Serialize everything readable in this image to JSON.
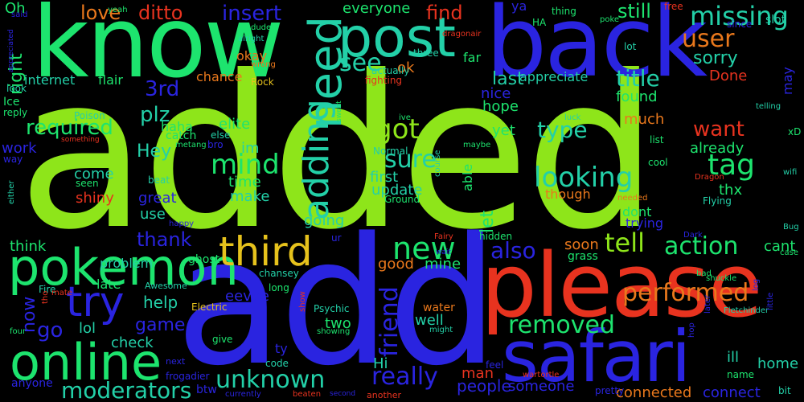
{
  "palette": {
    "lime": "#8ee51a",
    "green": "#1de46e",
    "blue": "#2a24e0",
    "red": "#e8331f",
    "teal": "#23d0a8",
    "yellow": "#e6c21c",
    "orange": "#e9781c"
  },
  "words": [
    {
      "text": "added",
      "color": "#8ee51a"
    },
    {
      "text": "add",
      "color": "#2a24e0"
    },
    {
      "text": "know",
      "color": "#1de46e"
    },
    {
      "text": "back",
      "color": "#2a24e0"
    },
    {
      "text": "please",
      "color": "#e8331f"
    },
    {
      "text": "safari",
      "color": "#2a24e0"
    },
    {
      "text": "pokemon",
      "color": "#1de46e"
    },
    {
      "text": "online",
      "color": "#1de46e"
    },
    {
      "text": "post",
      "color": "#23d0a8"
    },
    {
      "text": "need",
      "color": "#23d0a8"
    },
    {
      "text": "adding",
      "color": "#23d0a8"
    },
    {
      "text": "third",
      "color": "#e6c21c"
    },
    {
      "text": "try",
      "color": "#2a24e0"
    },
    {
      "text": "missing",
      "color": "#23d0a8"
    },
    {
      "text": "user",
      "color": "#e9781c"
    },
    {
      "text": "tag",
      "color": "#1de46e"
    },
    {
      "text": "looking",
      "color": "#23d0a8"
    },
    {
      "text": "action",
      "color": "#1de46e"
    },
    {
      "text": "removed",
      "color": "#1de46e"
    },
    {
      "text": "performed",
      "color": "#e9781c"
    },
    {
      "text": "unknown",
      "color": "#23d0a8"
    },
    {
      "text": "moderators",
      "color": "#23d0a8"
    },
    {
      "text": "really",
      "color": "#2a24e0"
    },
    {
      "text": "new",
      "color": "#1de46e"
    },
    {
      "text": "friend",
      "color": "#2a24e0"
    },
    {
      "text": "tell",
      "color": "#8ee51a"
    },
    {
      "text": "also",
      "color": "#2a24e0"
    },
    {
      "text": "see",
      "color": "#23d0a8"
    },
    {
      "text": "sure",
      "color": "#23d0a8"
    },
    {
      "text": "got",
      "color": "#8ee51a"
    },
    {
      "text": "mind",
      "color": "#1de46e"
    },
    {
      "text": "love",
      "color": "#e9781c"
    },
    {
      "text": "ditto",
      "color": "#e8331f"
    },
    {
      "text": "insert",
      "color": "#2a24e0"
    },
    {
      "text": "find",
      "color": "#e8331f"
    },
    {
      "text": "still",
      "color": "#1de46e"
    },
    {
      "text": "everyone",
      "color": "#1de46e"
    },
    {
      "text": "sorry",
      "color": "#23d0a8"
    },
    {
      "text": "title",
      "color": "#23d0a8"
    },
    {
      "text": "last",
      "color": "#23d0a8"
    },
    {
      "text": "type",
      "color": "#23d0a8"
    },
    {
      "text": "want",
      "color": "#e8331f"
    },
    {
      "text": "already",
      "color": "#1de46e"
    },
    {
      "text": "found",
      "color": "#1de46e"
    },
    {
      "text": "hope",
      "color": "#1de46e"
    },
    {
      "text": "much",
      "color": "#e9781c"
    },
    {
      "text": "required",
      "color": "#1de46e"
    },
    {
      "text": "plz",
      "color": "#23d0a8"
    },
    {
      "text": "Hey",
      "color": "#23d0a8"
    },
    {
      "text": "3rd",
      "color": "#2a24e0"
    },
    {
      "text": "right",
      "color": "#1de46e"
    },
    {
      "text": "internet",
      "color": "#23d0a8"
    },
    {
      "text": "flair",
      "color": "#1de46e"
    },
    {
      "text": "chance",
      "color": "#e9781c"
    },
    {
      "text": "haha",
      "color": "#1de46e"
    },
    {
      "text": "elite",
      "color": "#1de46e"
    },
    {
      "text": "im",
      "color": "#23d0a8"
    },
    {
      "text": "time",
      "color": "#1de46e"
    },
    {
      "text": "make",
      "color": "#23d0a8"
    },
    {
      "text": "update",
      "color": "#23d0a8"
    },
    {
      "text": "first",
      "color": "#23d0a8"
    },
    {
      "text": "let",
      "color": "#1de46e"
    },
    {
      "text": "going",
      "color": "#23d0a8"
    },
    {
      "text": "work",
      "color": "#2a24e0"
    },
    {
      "text": "come",
      "color": "#23d0a8"
    },
    {
      "text": "great",
      "color": "#2a24e0"
    },
    {
      "text": "shiny",
      "color": "#e8331f"
    },
    {
      "text": "use",
      "color": "#23d0a8"
    },
    {
      "text": "thank",
      "color": "#2a24e0"
    },
    {
      "text": "think",
      "color": "#1de46e"
    },
    {
      "text": "problem",
      "color": "#23d0a8"
    },
    {
      "text": "help",
      "color": "#23d0a8"
    },
    {
      "text": "game",
      "color": "#2a24e0"
    },
    {
      "text": "go",
      "color": "#2a24e0"
    },
    {
      "text": "lol",
      "color": "#23d0a8"
    },
    {
      "text": "now",
      "color": "#2a24e0"
    },
    {
      "text": "late",
      "color": "#1de46e"
    },
    {
      "text": "check",
      "color": "#23d0a8"
    },
    {
      "text": "eevee",
      "color": "#2a24e0"
    },
    {
      "text": "two",
      "color": "#1de46e"
    },
    {
      "text": "well",
      "color": "#23d0a8"
    },
    {
      "text": "Hi",
      "color": "#23d0a8"
    },
    {
      "text": "good",
      "color": "#e9781c"
    },
    {
      "text": "mine",
      "color": "#1de46e"
    },
    {
      "text": "people",
      "color": "#2a24e0"
    },
    {
      "text": "man",
      "color": "#e8331f"
    },
    {
      "text": "someone",
      "color": "#2a24e0"
    },
    {
      "text": "connected",
      "color": "#e9781c"
    },
    {
      "text": "connect",
      "color": "#2a24e0"
    },
    {
      "text": "home",
      "color": "#23d0a8"
    },
    {
      "text": "ill",
      "color": "#23d0a8"
    },
    {
      "text": "soon",
      "color": "#e9781c"
    },
    {
      "text": "cant",
      "color": "#1de46e"
    },
    {
      "text": "dont",
      "color": "#1de46e"
    },
    {
      "text": "trying",
      "color": "#2a24e0"
    },
    {
      "text": "thx",
      "color": "#1de46e"
    },
    {
      "text": "though",
      "color": "#e9781c"
    },
    {
      "text": "appreciate",
      "color": "#23d0a8"
    },
    {
      "text": "nice",
      "color": "#2a24e0"
    },
    {
      "text": "Done",
      "color": "#e8331f"
    },
    {
      "text": "ok",
      "color": "#e9781c"
    },
    {
      "text": "okay",
      "color": "#e9781c"
    },
    {
      "text": "far",
      "color": "#1de46e"
    },
    {
      "text": "yet",
      "color": "#1de46e"
    },
    {
      "text": "able",
      "color": "#1de46e"
    },
    {
      "text": "Oh",
      "color": "#1de46e"
    },
    {
      "text": "ya",
      "color": "#2a24e0"
    },
    {
      "text": "may",
      "color": "#2a24e0"
    },
    {
      "text": "Ice",
      "color": "#1de46e"
    },
    {
      "text": "Fire",
      "color": "#23d0a8"
    },
    {
      "text": "Rock",
      "color": "#e6c21c"
    },
    {
      "text": "Normal",
      "color": "#23d0a8"
    },
    {
      "text": "Ground",
      "color": "#1de46e"
    },
    {
      "text": "Psychic",
      "color": "#23d0a8"
    },
    {
      "text": "Electric",
      "color": "#e6c21c"
    },
    {
      "text": "Poison",
      "color": "#23d0a8"
    },
    {
      "text": "Flying",
      "color": "#23d0a8"
    },
    {
      "text": "Dragon",
      "color": "#e8331f"
    },
    {
      "text": "Fairy",
      "color": "#e8331f"
    },
    {
      "text": "Dark",
      "color": "#2a24e0"
    },
    {
      "text": "Bug",
      "color": "#23d0a8"
    },
    {
      "text": "water",
      "color": "#e9781c"
    },
    {
      "text": "grass",
      "color": "#1de46e"
    },
    {
      "text": "ghost",
      "color": "#1de46e"
    },
    {
      "text": "fighting",
      "color": "#e8331f"
    },
    {
      "text": "hidden",
      "color": "#1de46e"
    },
    {
      "text": "beat",
      "color": "#23d0a8"
    },
    {
      "text": "catch",
      "color": "#1de46e"
    },
    {
      "text": "chansey",
      "color": "#23d0a8"
    },
    {
      "text": "frogadier",
      "color": "#2a24e0"
    },
    {
      "text": "wartortle",
      "color": "#e8331f"
    },
    {
      "text": "Fletchinder",
      "color": "#23d0a8"
    },
    {
      "text": "dragonair",
      "color": "#e8331f"
    },
    {
      "text": "shuckle",
      "color": "#1de46e"
    },
    {
      "text": "metang",
      "color": "#1de46e"
    },
    {
      "text": "poke",
      "color": "#1de46e"
    },
    {
      "text": "slot",
      "color": "#23d0a8"
    },
    {
      "text": "free",
      "color": "#e8331f"
    },
    {
      "text": "since",
      "color": "#2a24e0"
    },
    {
      "text": "thing",
      "color": "#1de46e"
    },
    {
      "text": "HA",
      "color": "#1de46e"
    },
    {
      "text": "lot",
      "color": "#23d0a8"
    },
    {
      "text": "three",
      "color": "#23d0a8"
    },
    {
      "text": "actually",
      "color": "#23d0a8"
    },
    {
      "text": "dude",
      "color": "#1de46e"
    },
    {
      "text": "alright",
      "color": "#23d0a8"
    },
    {
      "text": "wrong",
      "color": "#e9781c"
    },
    {
      "text": "yeah",
      "color": "#1de46e"
    },
    {
      "text": "said",
      "color": "#2a24e0"
    },
    {
      "text": "appreciated",
      "color": "#2a24e0"
    },
    {
      "text": "look",
      "color": "#23d0a8"
    },
    {
      "text": "reply",
      "color": "#1de46e"
    },
    {
      "text": "something",
      "color": "#e8331f"
    },
    {
      "text": "way",
      "color": "#2a24e0"
    },
    {
      "text": "either",
      "color": "#23d0a8"
    },
    {
      "text": "bro",
      "color": "#2a24e0"
    },
    {
      "text": "else",
      "color": "#23d0a8"
    },
    {
      "text": "seen",
      "color": "#1de46e"
    },
    {
      "text": "happy",
      "color": "#2a24e0"
    },
    {
      "text": "ur",
      "color": "#2a24e0"
    },
    {
      "text": "wait",
      "color": "#2a24e0"
    },
    {
      "text": "Awesome",
      "color": "#23d0a8"
    },
    {
      "text": "tho",
      "color": "#e8331f"
    },
    {
      "text": "mate",
      "color": "#e8331f"
    },
    {
      "text": "long",
      "color": "#1de46e"
    },
    {
      "text": "show",
      "color": "#e8331f"
    },
    {
      "text": "showing",
      "color": "#1de46e"
    },
    {
      "text": "might",
      "color": "#23d0a8"
    },
    {
      "text": "give",
      "color": "#1de46e"
    },
    {
      "text": "code",
      "color": "#23d0a8"
    },
    {
      "text": "ty",
      "color": "#2a24e0"
    },
    {
      "text": "btw",
      "color": "#2a24e0"
    },
    {
      "text": "anyone",
      "color": "#2a24e0"
    },
    {
      "text": "four",
      "color": "#1de46e"
    },
    {
      "text": "next",
      "color": "#2a24e0"
    },
    {
      "text": "currently",
      "color": "#2a24e0"
    },
    {
      "text": "beaten",
      "color": "#e8331f"
    },
    {
      "text": "second",
      "color": "#2a24e0"
    },
    {
      "text": "another",
      "color": "#e8331f"
    },
    {
      "text": "feel",
      "color": "#2a24e0"
    },
    {
      "text": "pretty",
      "color": "#2a24e0"
    },
    {
      "text": "bit",
      "color": "#23d0a8"
    },
    {
      "text": "name",
      "color": "#1de46e"
    },
    {
      "text": "hop",
      "color": "#2a24e0"
    },
    {
      "text": "later",
      "color": "#2a24e0"
    },
    {
      "text": "little",
      "color": "#2a24e0"
    },
    {
      "text": "bad",
      "color": "#1de46e"
    },
    {
      "text": "log",
      "color": "#2a24e0"
    },
    {
      "text": "case",
      "color": "#1de46e"
    },
    {
      "text": "needed",
      "color": "#e9781c"
    },
    {
      "text": "cool",
      "color": "#1de46e"
    },
    {
      "text": "list",
      "color": "#1de46e"
    },
    {
      "text": "luck",
      "color": "#23d0a8"
    },
    {
      "text": "maybe",
      "color": "#1de46e"
    },
    {
      "text": "course",
      "color": "#23d0a8"
    },
    {
      "text": "ive",
      "color": "#1de46e"
    },
    {
      "text": "sweet",
      "color": "#1de46e"
    },
    {
      "text": "telling",
      "color": "#23d0a8"
    },
    {
      "text": "wifi",
      "color": "#23d0a8"
    },
    {
      "text": "xD",
      "color": "#1de46e"
    }
  ]
}
